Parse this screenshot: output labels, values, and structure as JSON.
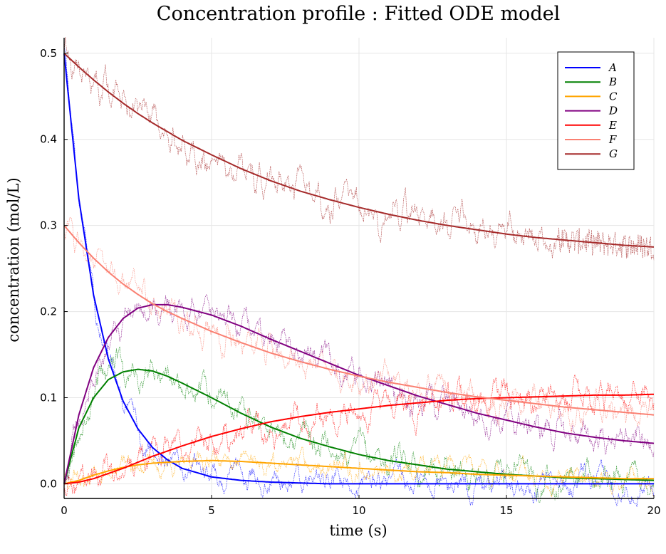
{
  "chart_data": {
    "type": "line",
    "title": "Concentration profile : Fitted ODE model",
    "xlabel": "time (s)",
    "ylabel": "concentration (mol/L)",
    "xlim": [
      0,
      20
    ],
    "ylim": [
      -0.017,
      0.518
    ],
    "xticks": [
      0,
      5,
      10,
      15,
      20
    ],
    "xtick_labels": [
      "0",
      "5",
      "10",
      "15",
      "20"
    ],
    "yticks": [
      0.0,
      0.1,
      0.2,
      0.3,
      0.4,
      0.5
    ],
    "ytick_labels": [
      "0.0",
      "0.1",
      "0.2",
      "0.3",
      "0.4",
      "0.5"
    ],
    "grid": true,
    "legend_position": "top-right",
    "x": [
      0,
      0.5,
      1,
      1.5,
      2,
      2.5,
      3,
      3.5,
      4,
      5,
      6,
      7,
      8,
      9,
      10,
      11,
      12,
      13,
      14,
      15,
      16,
      17,
      18,
      19,
      20
    ],
    "series": [
      {
        "name": "A",
        "color": "#0000ff",
        "fitted": [
          0.5,
          0.331,
          0.219,
          0.145,
          0.096,
          0.064,
          0.042,
          0.028,
          0.018,
          0.008,
          0.004,
          0.002,
          0.001,
          0.0,
          0.0,
          0.0,
          0.0,
          0.0,
          0.0,
          0.0,
          0.0,
          0.0,
          0.0,
          0.0,
          0.0
        ],
        "noise_amplitude": 0.02
      },
      {
        "name": "B",
        "color": "#008000",
        "fitted": [
          0.0,
          0.065,
          0.1,
          0.121,
          0.13,
          0.133,
          0.131,
          0.125,
          0.117,
          0.1,
          0.082,
          0.066,
          0.053,
          0.043,
          0.034,
          0.027,
          0.022,
          0.017,
          0.014,
          0.011,
          0.009,
          0.007,
          0.006,
          0.005,
          0.004
        ],
        "noise_amplitude": 0.025
      },
      {
        "name": "C",
        "color": "#ffa500",
        "fitted": [
          0.0,
          0.004,
          0.01,
          0.015,
          0.019,
          0.022,
          0.024,
          0.025,
          0.026,
          0.027,
          0.026,
          0.024,
          0.022,
          0.02,
          0.018,
          0.016,
          0.014,
          0.013,
          0.011,
          0.01,
          0.009,
          0.008,
          0.007,
          0.006,
          0.006
        ],
        "noise_amplitude": 0.018
      },
      {
        "name": "D",
        "color": "#800080",
        "fitted": [
          0.0,
          0.08,
          0.135,
          0.17,
          0.192,
          0.204,
          0.208,
          0.208,
          0.205,
          0.196,
          0.183,
          0.168,
          0.154,
          0.14,
          0.126,
          0.114,
          0.102,
          0.092,
          0.082,
          0.074,
          0.066,
          0.059,
          0.054,
          0.05,
          0.047
        ],
        "noise_amplitude": 0.025
      },
      {
        "name": "E",
        "color": "#ff0000",
        "fitted": [
          0.0,
          0.002,
          0.006,
          0.012,
          0.018,
          0.025,
          0.032,
          0.038,
          0.044,
          0.055,
          0.064,
          0.072,
          0.078,
          0.083,
          0.087,
          0.091,
          0.094,
          0.097,
          0.099,
          0.1,
          0.101,
          0.102,
          0.103,
          0.103,
          0.104
        ],
        "noise_amplitude": 0.025
      },
      {
        "name": "F",
        "color": "#fa8072",
        "fitted": [
          0.3,
          0.28,
          0.262,
          0.246,
          0.232,
          0.22,
          0.209,
          0.2,
          0.192,
          0.177,
          0.164,
          0.152,
          0.142,
          0.133,
          0.125,
          0.118,
          0.112,
          0.106,
          0.101,
          0.097,
          0.093,
          0.089,
          0.086,
          0.083,
          0.08
        ],
        "noise_amplitude": 0.025
      },
      {
        "name": "G",
        "color": "#a52a2a",
        "fitted": [
          0.5,
          0.484,
          0.469,
          0.455,
          0.442,
          0.43,
          0.419,
          0.409,
          0.399,
          0.382,
          0.366,
          0.352,
          0.34,
          0.33,
          0.321,
          0.313,
          0.306,
          0.3,
          0.295,
          0.29,
          0.286,
          0.283,
          0.28,
          0.277,
          0.275
        ],
        "noise_amplitude": 0.028
      }
    ]
  }
}
